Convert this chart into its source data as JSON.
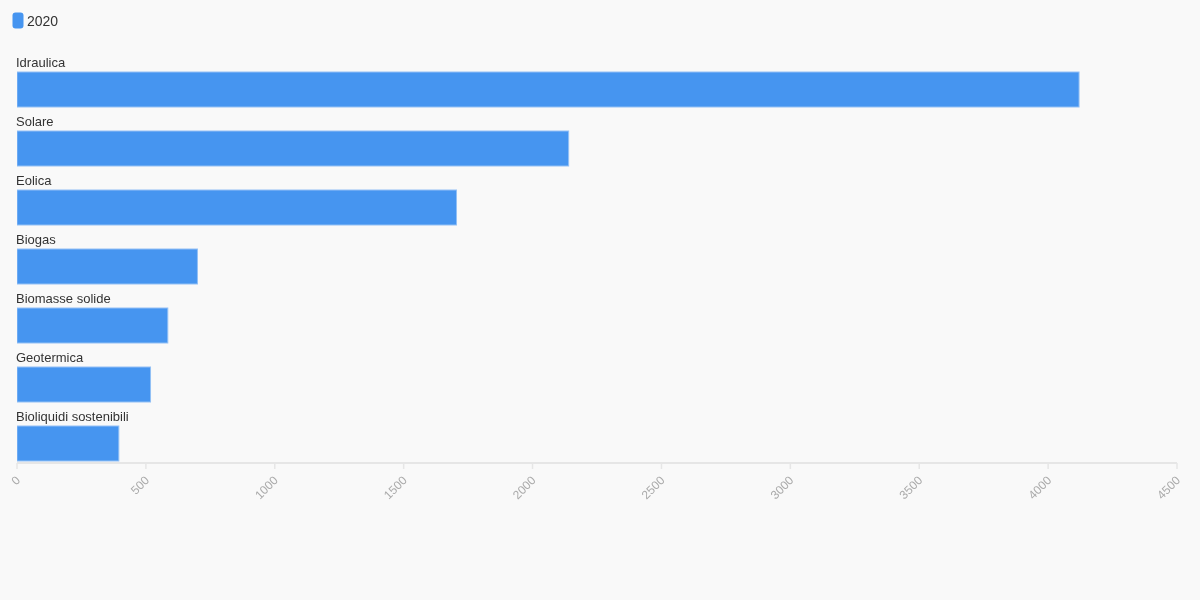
{
  "chart_data": {
    "type": "bar",
    "orientation": "horizontal",
    "categories": [
      "Idraulica",
      "Solare",
      "Eolica",
      "Biogas",
      "Biomasse solide",
      "Geotermica",
      "Bioliquidi sostenibili"
    ],
    "series": [
      {
        "name": "2020",
        "color": "#4695f0",
        "values": [
          4120,
          2140,
          1705,
          700,
          585,
          518,
          395
        ]
      }
    ],
    "xlim": [
      0,
      4500
    ],
    "xticks": [
      0,
      500,
      1000,
      1500,
      2000,
      2500,
      3000,
      3500,
      4000,
      4500
    ],
    "legend": "top left"
  }
}
